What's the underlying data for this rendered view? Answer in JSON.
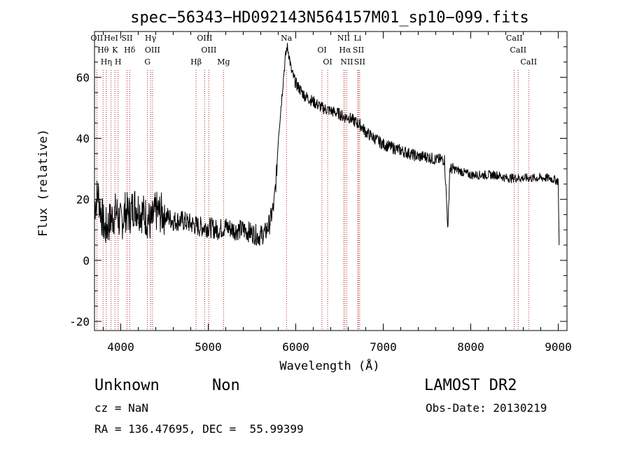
{
  "title": "spec−56343−HD092143N564157M01_sp10−099.fits",
  "chart_data": {
    "type": "line",
    "title": "spec−56343−HD092143N564157M01_sp10−099.fits",
    "xlabel": "Wavelength (Å)",
    "ylabel": "Flux (relative)",
    "xlim": [
      3700,
      9100
    ],
    "ylim": [
      -23,
      75
    ],
    "x_ticks": [
      4000,
      5000,
      6000,
      7000,
      8000,
      9000
    ],
    "y_ticks": [
      -20,
      0,
      20,
      40,
      60
    ],
    "grid": false,
    "series": [
      {
        "x": [
          3700,
          3740,
          3780,
          3820,
          3860,
          3900,
          3950,
          4000,
          4050,
          4100,
          4150,
          4200,
          4300,
          4350,
          4400,
          4500,
          4600,
          4700,
          4800,
          4900,
          5000,
          5100,
          5200,
          5300,
          5400,
          5500,
          5580,
          5650,
          5700,
          5750,
          5780,
          5800,
          5830,
          5860,
          5880,
          5900,
          5920,
          5950,
          6000,
          6050,
          6100,
          6200,
          6300,
          6400,
          6500,
          6550,
          6600,
          6650,
          6700,
          6750,
          6800,
          6900,
          7000,
          7100,
          7200,
          7300,
          7400,
          7500,
          7600,
          7700,
          7740,
          7760,
          7800,
          7900,
          8000,
          8100,
          8200,
          8300,
          8400,
          8500,
          8600,
          8700,
          8800,
          8900,
          9000,
          9010
        ],
        "y": [
          18,
          22,
          15,
          10,
          12,
          14,
          16,
          12,
          16,
          15,
          18,
          17,
          14,
          12,
          16,
          15,
          13,
          13,
          12,
          11,
          11,
          10,
          11,
          10,
          10,
          9,
          8,
          9,
          12,
          18,
          28,
          40,
          50,
          60,
          66,
          70,
          68,
          62,
          58,
          56,
          54,
          52,
          50,
          49,
          48,
          47,
          47,
          46,
          45,
          44,
          42,
          40,
          38,
          37,
          36,
          35,
          34,
          34,
          33,
          33,
          10,
          30,
          30,
          29,
          28,
          28,
          28,
          28,
          27,
          27,
          27,
          27,
          27,
          27,
          26,
          5
        ]
      }
    ],
    "line_markers": [
      {
        "label": "OII",
        "x": 3727
      },
      {
        "label": "Hθ",
        "x": 3798
      },
      {
        "label": "Hη",
        "x": 3835
      },
      {
        "label": "HeI",
        "x": 3889
      },
      {
        "label": "K",
        "x": 3934
      },
      {
        "label": "H",
        "x": 3969
      },
      {
        "label": "SII",
        "x": 4072
      },
      {
        "label": "Hδ",
        "x": 4102
      },
      {
        "label": "G",
        "x": 4305
      },
      {
        "label": "Hγ",
        "x": 4341
      },
      {
        "label": "OIII",
        "x": 4363
      },
      {
        "label": "Hβ",
        "x": 4861
      },
      {
        "label": "OIII",
        "x": 4959
      },
      {
        "label": "OIII",
        "x": 5007
      },
      {
        "label": "Mg",
        "x": 5175
      },
      {
        "label": "Na",
        "x": 5894
      },
      {
        "label": "OI",
        "x": 6300
      },
      {
        "label": "OI",
        "x": 6364
      },
      {
        "label": "NII",
        "x": 6548
      },
      {
        "label": "Hα",
        "x": 6563
      },
      {
        "label": "NII",
        "x": 6583
      },
      {
        "label": "Li",
        "x": 6707
      },
      {
        "label": "SII",
        "x": 6717
      },
      {
        "label": "SII",
        "x": 6731
      },
      {
        "label": "CaII",
        "x": 8498
      },
      {
        "label": "CaII",
        "x": 8542
      },
      {
        "label": "CaII",
        "x": 8662
      }
    ]
  },
  "footer": {
    "class_label": "Unknown",
    "subclass_label": "Non",
    "redshift": "cz = NaN",
    "coordinates": "RA = 136.47695, DEC =  55.99399",
    "survey": "LAMOST DR2",
    "obs_date": "Obs-Date: 20130219"
  }
}
